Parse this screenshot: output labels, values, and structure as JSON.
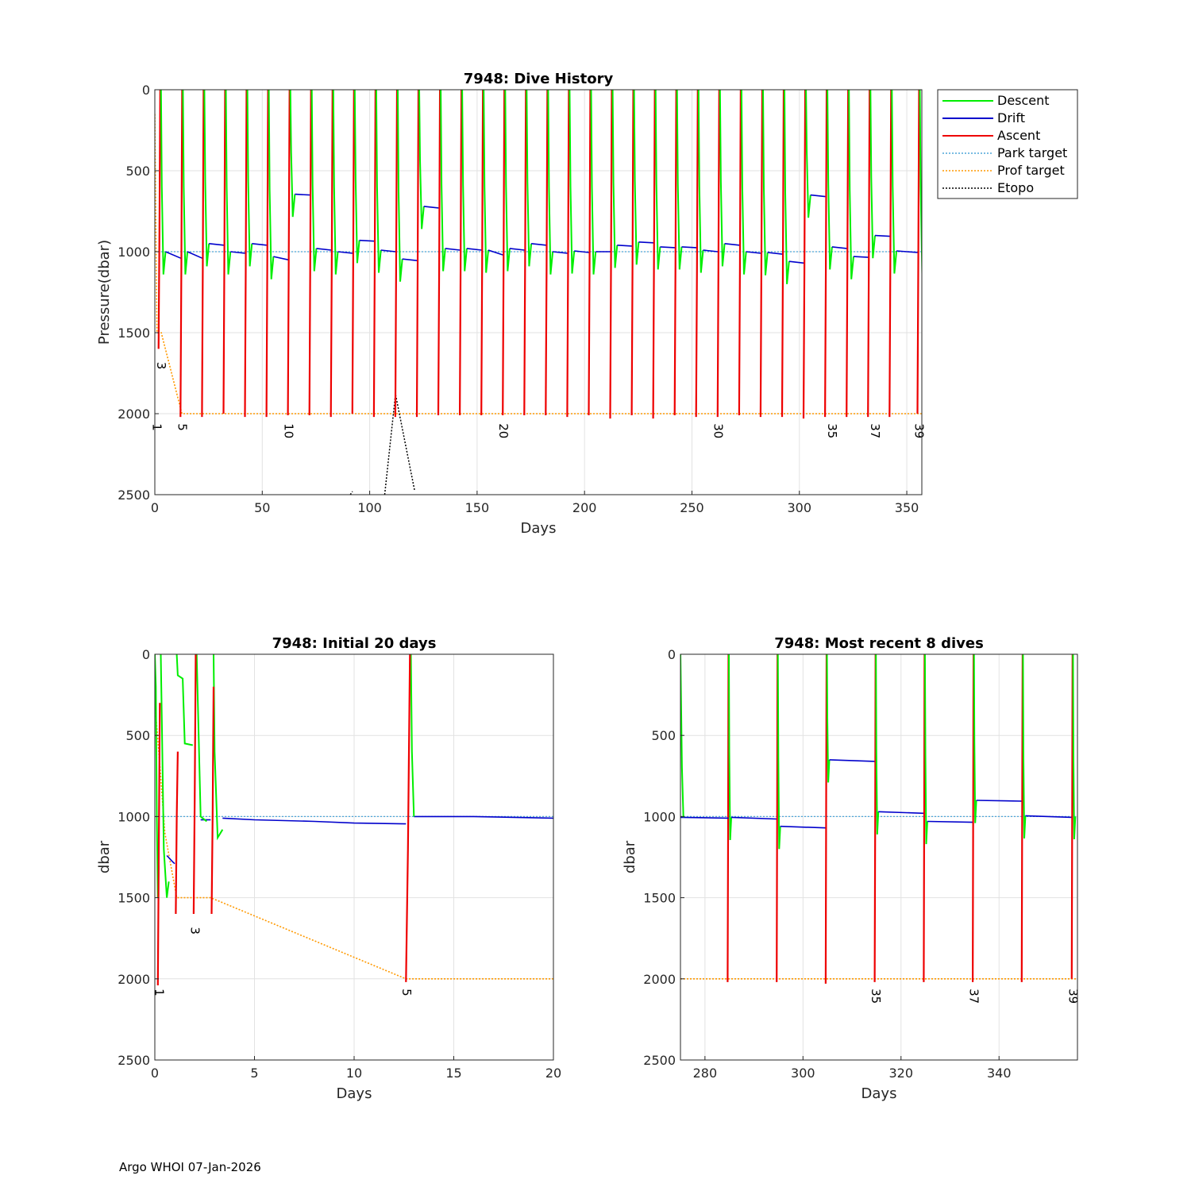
{
  "footer": "Argo WHOI 07-Jan-2026",
  "colors": {
    "descent": "#00ee00",
    "drift": "#0000cc",
    "ascent": "#ee0000",
    "park_target": "#4da6d9",
    "prof_target": "#ff9900",
    "etopo": "#000000",
    "grid": "#e2e2e2",
    "axis": "#262626"
  },
  "legend": [
    "Descent",
    "Drift",
    "Ascent",
    "Park target",
    "Prof target",
    "Etopo"
  ],
  "chart_data": [
    {
      "id": "full",
      "type": "line",
      "title": "7948: Dive History",
      "xlabel": "Days",
      "ylabel": "Pressure(dbar)",
      "xlim": [
        0,
        357
      ],
      "ylim": [
        0,
        2500
      ],
      "y_reversed": true,
      "xticks": [
        0,
        50,
        100,
        150,
        200,
        250,
        300,
        350
      ],
      "yticks": [
        0,
        500,
        1000,
        1500,
        2000,
        2500
      ],
      "park_target": [
        [
          0,
          1000
        ],
        [
          357,
          1000
        ]
      ],
      "prof_target": [
        [
          0,
          150
        ],
        [
          0.6,
          1000
        ],
        [
          1,
          1500
        ],
        [
          3,
          1500
        ],
        [
          12.6,
          2000
        ],
        [
          357,
          2000
        ]
      ],
      "etopo_segments": [
        [
          [
            91,
            2500
          ],
          [
            92,
            2480
          ]
        ],
        [
          [
            107,
            2500
          ],
          [
            112,
            1880
          ],
          [
            121,
            2480
          ]
        ]
      ],
      "cycles": [
        {
          "day": 2.5,
          "drift_start": 1000,
          "drift_end": 1040,
          "min_depth": 1600
        },
        {
          "day": 12.7,
          "drift_start": 1000,
          "drift_end": 1040,
          "min_depth": 2020
        },
        {
          "day": 22.7,
          "drift_start": 950,
          "drift_end": 960,
          "min_depth": 2020
        },
        {
          "day": 32.7,
          "drift_start": 1000,
          "drift_end": 1010,
          "min_depth": 2000
        },
        {
          "day": 42.7,
          "drift_start": 950,
          "drift_end": 960,
          "min_depth": 2020
        },
        {
          "day": 52.7,
          "drift_start": 1030,
          "drift_end": 1050,
          "min_depth": 2020
        },
        {
          "day": 62.7,
          "drift_start": 645,
          "drift_end": 650,
          "min_depth": 2010
        },
        {
          "day": 72.7,
          "drift_start": 980,
          "drift_end": 990,
          "min_depth": 2010
        },
        {
          "day": 82.7,
          "drift_start": 1000,
          "drift_end": 1010,
          "min_depth": 2020
        },
        {
          "day": 92.7,
          "drift_start": 930,
          "drift_end": 935,
          "min_depth": 2000
        },
        {
          "day": 102.7,
          "drift_start": 990,
          "drift_end": 1000,
          "min_depth": 2020
        },
        {
          "day": 112.7,
          "drift_start": 1045,
          "drift_end": 1055,
          "min_depth": 2020
        },
        {
          "day": 122.7,
          "drift_start": 720,
          "drift_end": 730,
          "min_depth": 2020
        },
        {
          "day": 132.7,
          "drift_start": 980,
          "drift_end": 990,
          "min_depth": 2010
        },
        {
          "day": 142.7,
          "drift_start": 980,
          "drift_end": 990,
          "min_depth": 2010
        },
        {
          "day": 152.7,
          "drift_start": 990,
          "drift_end": 1020,
          "min_depth": 2010
        },
        {
          "day": 162.7,
          "drift_start": 980,
          "drift_end": 990,
          "min_depth": 2010
        },
        {
          "day": 172.7,
          "drift_start": 950,
          "drift_end": 960,
          "min_depth": 2010
        },
        {
          "day": 182.7,
          "drift_start": 1000,
          "drift_end": 1010,
          "min_depth": 2010
        },
        {
          "day": 192.7,
          "drift_start": 995,
          "drift_end": 1005,
          "min_depth": 2020
        },
        {
          "day": 202.7,
          "drift_start": 1000,
          "drift_end": 1000,
          "min_depth": 2010
        },
        {
          "day": 212.7,
          "drift_start": 960,
          "drift_end": 965,
          "min_depth": 2030
        },
        {
          "day": 222.7,
          "drift_start": 940,
          "drift_end": 945,
          "min_depth": 2010
        },
        {
          "day": 232.7,
          "drift_start": 970,
          "drift_end": 975,
          "min_depth": 2030
        },
        {
          "day": 242.7,
          "drift_start": 970,
          "drift_end": 975,
          "min_depth": 2010
        },
        {
          "day": 252.7,
          "drift_start": 990,
          "drift_end": 1000,
          "min_depth": 2020
        },
        {
          "day": 262.7,
          "drift_start": 950,
          "drift_end": 960,
          "min_depth": 2020
        },
        {
          "day": 272.7,
          "drift_start": 1000,
          "drift_end": 1010,
          "min_depth": 2010
        },
        {
          "day": 282.7,
          "drift_start": 1005,
          "drift_end": 1015,
          "min_depth": 2020
        },
        {
          "day": 292.7,
          "drift_start": 1060,
          "drift_end": 1070,
          "min_depth": 2020
        },
        {
          "day": 302.7,
          "drift_start": 650,
          "drift_end": 660,
          "min_depth": 2030
        },
        {
          "day": 312.7,
          "drift_start": 970,
          "drift_end": 980,
          "min_depth": 2020
        },
        {
          "day": 322.7,
          "drift_start": 1030,
          "drift_end": 1035,
          "min_depth": 2020
        },
        {
          "day": 332.7,
          "drift_start": 900,
          "drift_end": 905,
          "min_depth": 2020
        },
        {
          "day": 342.7,
          "drift_start": 995,
          "drift_end": 1005,
          "min_depth": 2020
        },
        {
          "day": 355.7,
          "drift_start": 1000,
          "drift_end": 1000,
          "min_depth": 2000
        }
      ],
      "cycle_labels": [
        {
          "text": "1",
          "day": 0.8,
          "pressure": 2060
        },
        {
          "text": "3",
          "day": 2.8,
          "pressure": 1680
        },
        {
          "text": "5",
          "day": 12.6,
          "pressure": 2060
        },
        {
          "text": "10",
          "day": 62,
          "pressure": 2060
        },
        {
          "text": "20",
          "day": 162,
          "pressure": 2060
        },
        {
          "text": "30",
          "day": 262,
          "pressure": 2060
        },
        {
          "text": "35",
          "day": 315,
          "pressure": 2060
        },
        {
          "text": "37",
          "day": 335,
          "pressure": 2060
        },
        {
          "text": "39",
          "day": 355.5,
          "pressure": 2060
        }
      ]
    },
    {
      "id": "initial",
      "type": "line",
      "title": "7948: Initial 20 days",
      "xlabel": "Days",
      "ylabel": "dbar",
      "xlim": [
        0,
        20
      ],
      "ylim": [
        0,
        2500
      ],
      "y_reversed": true,
      "xticks": [
        0,
        5,
        10,
        15,
        20
      ],
      "yticks": [
        0,
        500,
        1000,
        1500,
        2000,
        2500
      ],
      "park_target": [
        [
          0,
          1000
        ],
        [
          20,
          1000
        ]
      ],
      "prof_target": [
        [
          0,
          300
        ],
        [
          0.2,
          600
        ],
        [
          0.5,
          1100
        ],
        [
          1.1,
          1500
        ],
        [
          2.8,
          1500
        ],
        [
          12.6,
          2000
        ],
        [
          20,
          2000
        ]
      ],
      "descent": [
        [
          [
            0.0,
            0
          ],
          [
            0.05,
            200
          ],
          [
            0.1,
            1000
          ],
          [
            0.15,
            1500
          ],
          [
            0.2,
            1300
          ]
        ],
        [
          [
            0.3,
            0
          ],
          [
            0.35,
            400
          ],
          [
            0.45,
            1200
          ],
          [
            0.6,
            1500
          ],
          [
            0.7,
            1400
          ]
        ],
        [
          [
            1.1,
            0
          ],
          [
            1.15,
            130
          ],
          [
            1.4,
            150
          ],
          [
            1.5,
            550
          ],
          [
            1.9,
            560
          ]
        ],
        [
          [
            2.1,
            0
          ],
          [
            2.2,
            500
          ],
          [
            2.3,
            1000
          ],
          [
            2.6,
            1030
          ]
        ],
        [
          [
            2.95,
            0
          ],
          [
            3.0,
            600
          ],
          [
            3.15,
            1130
          ],
          [
            3.4,
            1080
          ]
        ],
        [
          [
            12.85,
            0
          ],
          [
            12.9,
            600
          ],
          [
            13.0,
            1000
          ]
        ]
      ],
      "drift": [
        [
          [
            0.6,
            1240
          ],
          [
            0.9,
            1280
          ],
          [
            1.0,
            1290
          ]
        ],
        [
          [
            1.5,
            550
          ],
          [
            1.9,
            560
          ]
        ],
        [
          [
            2.3,
            1020
          ],
          [
            2.8,
            1020
          ]
        ],
        [
          [
            3.4,
            1010
          ],
          [
            5,
            1020
          ],
          [
            8,
            1030
          ],
          [
            10,
            1040
          ],
          [
            12.6,
            1045
          ]
        ],
        [
          [
            13.0,
            1000
          ],
          [
            16,
            1000
          ],
          [
            20,
            1010
          ]
        ]
      ],
      "ascent": [
        [
          [
            0.15,
            2040
          ],
          [
            0.2,
            1200
          ],
          [
            0.25,
            300
          ]
        ],
        [
          [
            1.05,
            1600
          ],
          [
            1.1,
            1000
          ],
          [
            1.15,
            600
          ]
        ],
        [
          [
            1.95,
            1600
          ],
          [
            2.0,
            900
          ],
          [
            2.05,
            0
          ]
        ],
        [
          [
            2.85,
            1600
          ],
          [
            2.9,
            1000
          ],
          [
            2.95,
            200
          ]
        ],
        [
          [
            12.6,
            2020
          ],
          [
            12.7,
            1200
          ],
          [
            12.8,
            0
          ]
        ]
      ],
      "cycle_labels": [
        {
          "text": "1",
          "day": 0.2,
          "pressure": 2060
        },
        {
          "text": "3",
          "day": 2.0,
          "pressure": 1680
        },
        {
          "text": "5",
          "day": 12.6,
          "pressure": 2060
        }
      ]
    },
    {
      "id": "recent",
      "type": "line",
      "title": "7948: Most recent 8 dives",
      "xlabel": "Days",
      "ylabel": "dbar",
      "xlim": [
        275,
        356
      ],
      "ylim": [
        0,
        2500
      ],
      "y_reversed": true,
      "xticks": [
        280,
        300,
        320,
        340
      ],
      "yticks": [
        0,
        500,
        1000,
        1500,
        2000,
        2500
      ],
      "park_target": [
        [
          275,
          1000
        ],
        [
          356,
          1000
        ]
      ],
      "prof_target": [
        [
          275,
          2000
        ],
        [
          356,
          2000
        ]
      ],
      "cycles": [
        {
          "day": 284.8,
          "drift_start": 1005,
          "drift_end": 1015,
          "min_depth": 2020
        },
        {
          "day": 294.8,
          "drift_start": 1060,
          "drift_end": 1070,
          "min_depth": 2020
        },
        {
          "day": 304.8,
          "drift_start": 650,
          "drift_end": 660,
          "min_depth": 2030
        },
        {
          "day": 314.8,
          "drift_start": 970,
          "drift_end": 980,
          "min_depth": 2020
        },
        {
          "day": 324.8,
          "drift_start": 1030,
          "drift_end": 1035,
          "min_depth": 2020
        },
        {
          "day": 334.8,
          "drift_start": 900,
          "drift_end": 905,
          "min_depth": 2020
        },
        {
          "day": 344.8,
          "drift_start": 995,
          "drift_end": 1005,
          "min_depth": 2020
        },
        {
          "day": 355.0,
          "drift_start": 1000,
          "drift_end": 1000,
          "min_depth": 2000
        }
      ],
      "start_drift": {
        "from_day": 275,
        "pressure": 1005
      },
      "cycle_labels": [
        {
          "text": "35",
          "day": 314.8,
          "pressure": 2060
        },
        {
          "text": "37",
          "day": 334.8,
          "pressure": 2060
        },
        {
          "text": "39",
          "day": 355.0,
          "pressure": 2060
        }
      ]
    }
  ]
}
